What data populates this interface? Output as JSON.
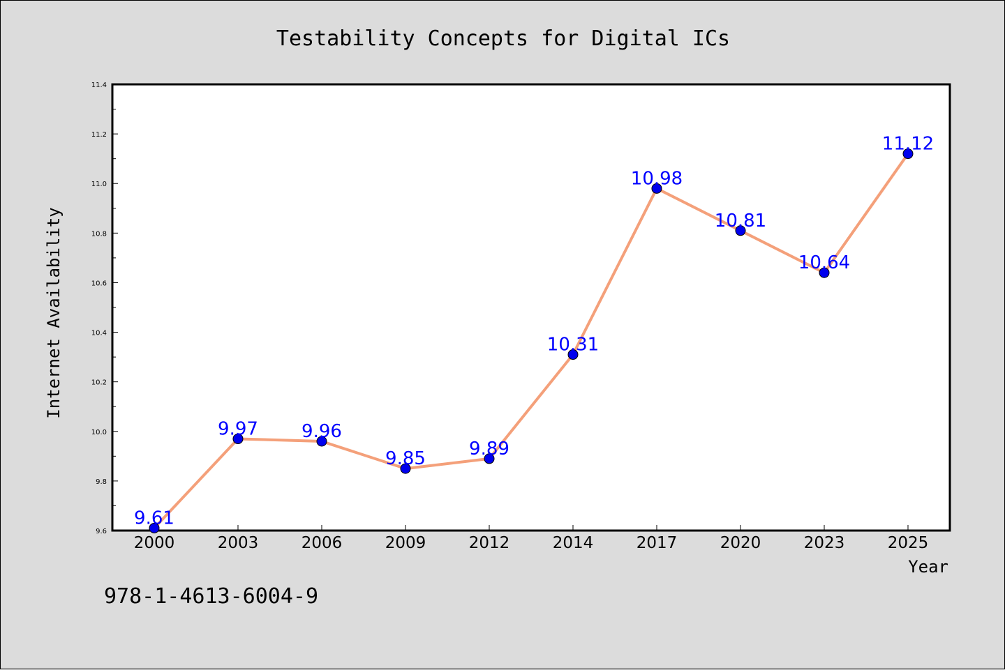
{
  "chart_data": {
    "type": "line",
    "title": "Testability Concepts for Digital ICs",
    "xlabel": "Year",
    "ylabel": "Internet Availability",
    "categories": [
      "2000",
      "2003",
      "2006",
      "2009",
      "2012",
      "2014",
      "2017",
      "2020",
      "2023",
      "2025"
    ],
    "values": [
      9.61,
      9.97,
      9.96,
      9.85,
      9.89,
      10.31,
      10.98,
      10.81,
      10.64,
      11.12
    ],
    "data_labels": [
      "9.61",
      "9.97",
      "9.96",
      "9.85",
      "9.89",
      "10.31",
      "10.98",
      "10.81",
      "10.64",
      "11.12"
    ],
    "ylim": [
      9.6,
      11.4
    ],
    "yticks": [
      "9.6",
      "9.8",
      "10.0",
      "10.2",
      "10.4",
      "10.6",
      "10.8",
      "11.0",
      "11.2",
      "11.4"
    ],
    "grid": false,
    "line_color": "#f4a07a",
    "marker_color": "#0000ee",
    "label_color": "#0000ff"
  },
  "footer_text": "978-1-4613-6004-9"
}
